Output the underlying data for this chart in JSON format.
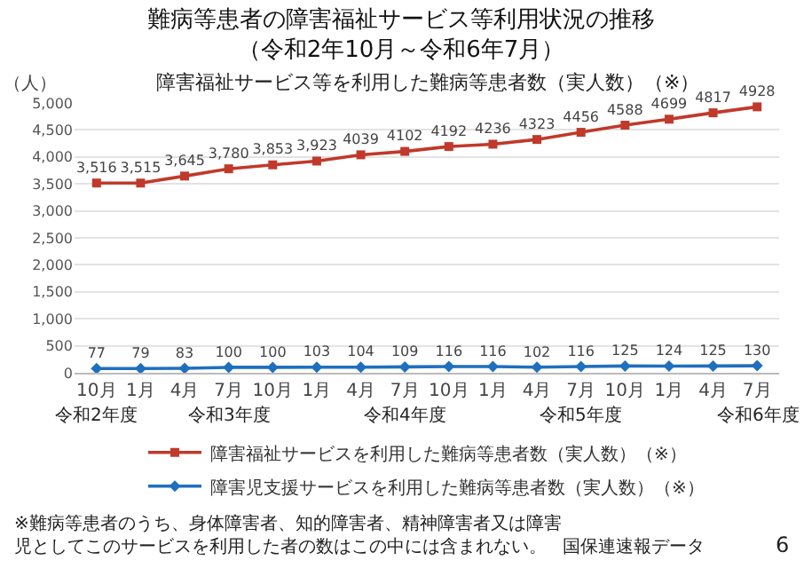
{
  "chart_data": {
    "type": "line",
    "title": "難病等患者の障害福祉サービス等利用状況の推移（令和2年10月～令和6年7月）",
    "subtitle": "障害福祉サービス等を利用した難病等患者数（実人数）（※）",
    "ylabel": "（人）",
    "categories": [
      "10月",
      "1月",
      "4月",
      "7月",
      "10月",
      "1月",
      "4月",
      "7月",
      "10月",
      "1月",
      "4月",
      "7月",
      "10月",
      "1月",
      "4月",
      "7月"
    ],
    "series": [
      {
        "name": "障害福祉サービスを利用した難病等患者数（実人数）（※）",
        "color": "#c0392b",
        "marker": "square",
        "values": [
          3516,
          3515,
          3645,
          3780,
          3853,
          3923,
          4039,
          4102,
          4192,
          4236,
          4323,
          4456,
          4588,
          4699,
          4817,
          4928
        ],
        "value_labels": [
          "3,516",
          "3,515",
          "3,645",
          "3,780",
          "3,853",
          "3,923",
          "4039",
          "4102",
          "4192",
          "4236",
          "4323",
          "4456",
          "4588",
          "4699",
          "4817",
          "4928"
        ]
      },
      {
        "name": "障害児支援サービスを利用した難病等患者数（実人数）（※）",
        "color": "#1f6fbf",
        "marker": "diamond",
        "values": [
          77,
          79,
          83,
          100,
          100,
          103,
          104,
          109,
          116,
          116,
          102,
          116,
          125,
          124,
          125,
          130
        ],
        "value_labels": [
          "77",
          "79",
          "83",
          "100",
          "100",
          "103",
          "104",
          "109",
          "116",
          "116",
          "102",
          "116",
          "125",
          "124",
          "125",
          "130"
        ]
      }
    ],
    "ylim": [
      0,
      5000
    ],
    "yticks": [
      {
        "value": 0,
        "label": "0"
      },
      {
        "value": 500,
        "label": "500"
      },
      {
        "value": 1000,
        "label": "1,000"
      },
      {
        "value": 1500,
        "label": "1,500"
      },
      {
        "value": 2000,
        "label": "2,000"
      },
      {
        "value": 2500,
        "label": "2,500"
      },
      {
        "value": 3000,
        "label": "3,000"
      },
      {
        "value": 3500,
        "label": "3,500"
      },
      {
        "value": 4000,
        "label": "4,000"
      },
      {
        "value": 4500,
        "label": "4,500"
      },
      {
        "value": 5000,
        "label": "5,000"
      }
    ],
    "grid": "y",
    "legend": "bottom",
    "annotations": [
      "令和2年度",
      "令和3年度",
      "令和4年度",
      "令和5年度",
      "令和6年度",
      "※難病等患者のうち、身体障害者、知的障害者、精神障害者又は障害児としてこのサービスを利用した者の数はこの中には含まれない。",
      "国保連速報データ",
      "6"
    ]
  }
}
